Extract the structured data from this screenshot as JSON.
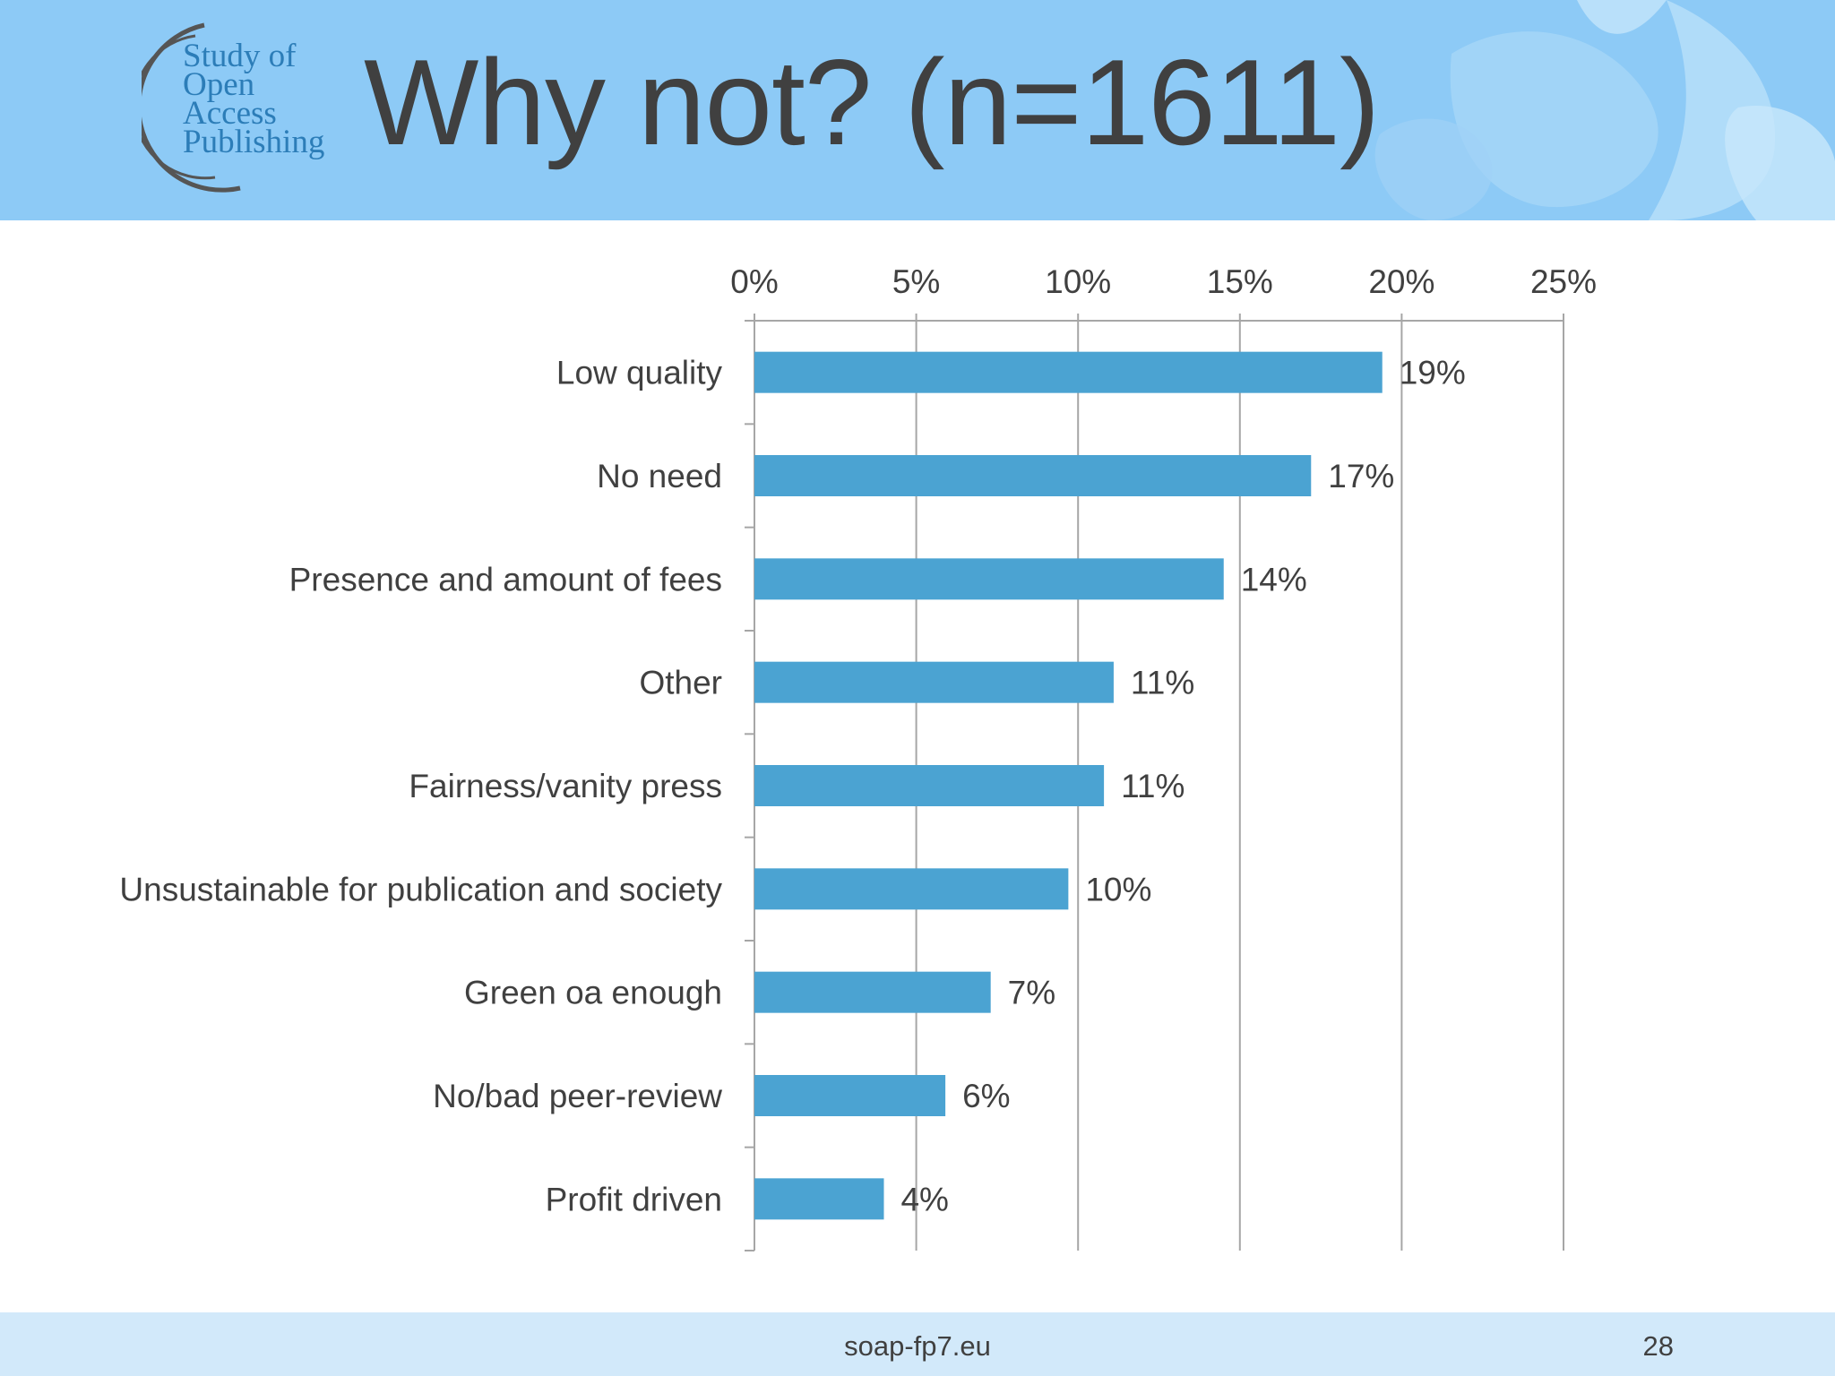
{
  "slide": {
    "title": "Why not? (n=1611)",
    "logo_lines": [
      "Study of",
      "Open",
      "Access",
      "Publishing"
    ],
    "footer_url": "soap-fp7.eu",
    "page_number": "28"
  },
  "colors": {
    "header_bg": "#8dcaf6",
    "bar": "#4ba3d2",
    "text": "#404040",
    "footer_bg": "#d2e9fa",
    "logo": "#2c7db8"
  },
  "chart_data": {
    "type": "bar",
    "orientation": "horizontal",
    "categories": [
      "Low quality",
      "No need",
      "Presence and amount of fees",
      "Other",
      "Fairness/vanity press",
      "Unsustainable for publication and society",
      "Green oa enough",
      "No/bad peer-review",
      "Profit driven"
    ],
    "values": [
      19.4,
      17.2,
      14.5,
      11.1,
      10.8,
      9.7,
      7.3,
      5.9,
      4.0
    ],
    "data_labels": [
      "19%",
      "17%",
      "14%",
      "11%",
      "11%",
      "10%",
      "7%",
      "6%",
      "4%"
    ],
    "xlim": [
      0,
      25
    ],
    "x_ticks": [
      0,
      5,
      10,
      15,
      20,
      25
    ],
    "x_tick_labels": [
      "0%",
      "5%",
      "10%",
      "15%",
      "20%",
      "25%"
    ],
    "x_axis_position": "top",
    "grid": true
  }
}
